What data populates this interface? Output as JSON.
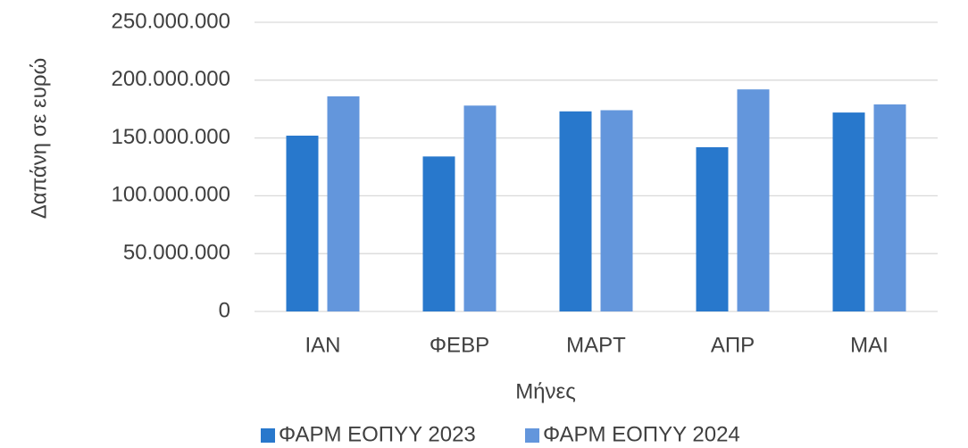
{
  "chart_data": {
    "type": "bar",
    "x_label": "Μήνες",
    "y_label": "Δαπάνη σε ευρώ",
    "categories": [
      "ΙΑΝ",
      "ΦΕΒΡ",
      "ΜΑΡΤ",
      "ΑΠΡ",
      "ΜΑΙ"
    ],
    "series": [
      {
        "name": "ΦΑΡΜ ΕΟΠΥΥ 2023",
        "color": "#2878cc",
        "values": [
          152000000,
          134000000,
          173000000,
          142000000,
          172000000
        ]
      },
      {
        "name": "ΦΑΡΜ ΕΟΠΥΥ 2024",
        "color": "#6396dc",
        "values": [
          186000000,
          178000000,
          174000000,
          192000000,
          179000000
        ]
      }
    ],
    "ylim": [
      0,
      250000000
    ],
    "yticks": [
      0,
      {
        "value": 50000000,
        "label": "50.000.000"
      },
      {
        "value": 100000000,
        "label": "100.000.000"
      },
      {
        "value": 150000000,
        "label": "150.000.000"
      },
      {
        "value": 200000000,
        "label": "200.000.000"
      },
      {
        "value": 250000000,
        "label": "250.000.000"
      }
    ],
    "grid": true,
    "legend": "bottom"
  }
}
